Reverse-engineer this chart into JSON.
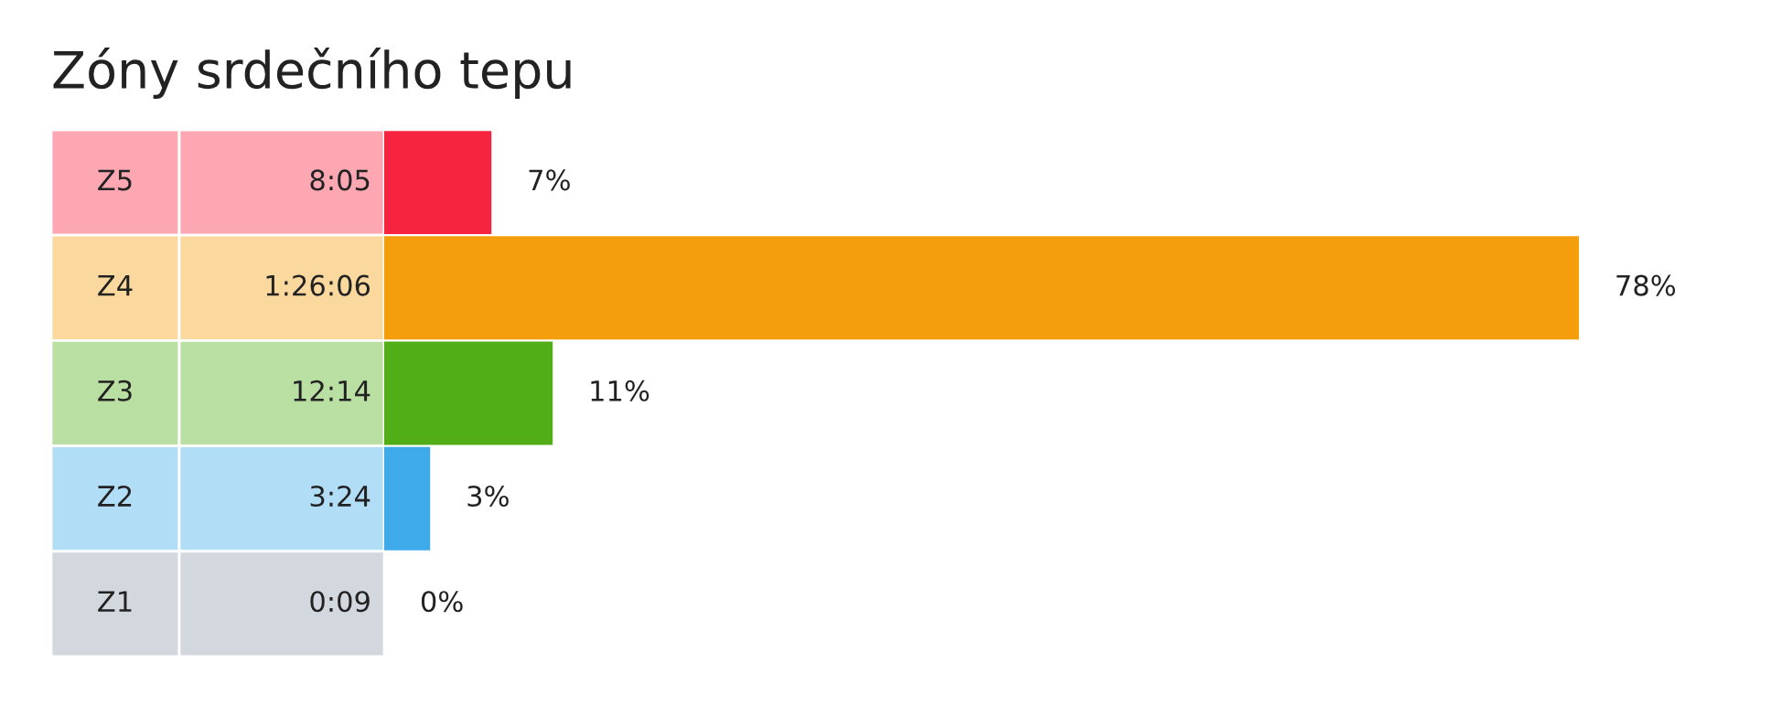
{
  "chart_data": {
    "type": "bar",
    "orientation": "horizontal",
    "title": "Zóny srdečního tepu",
    "categories": [
      "Z5",
      "Z4",
      "Z3",
      "Z2",
      "Z1"
    ],
    "values": [
      7,
      78,
      11,
      3,
      0
    ],
    "value_labels": [
      "7%",
      "78%",
      "11%",
      "3%",
      "0%"
    ],
    "colors": [
      "#f7243f",
      "#f59e0b",
      "#52ae16",
      "#3eaaea",
      "#8f9dab"
    ],
    "annotations": [
      "8:05",
      "1:26:06",
      "12:14",
      "3:24",
      "0:09"
    ]
  }
}
